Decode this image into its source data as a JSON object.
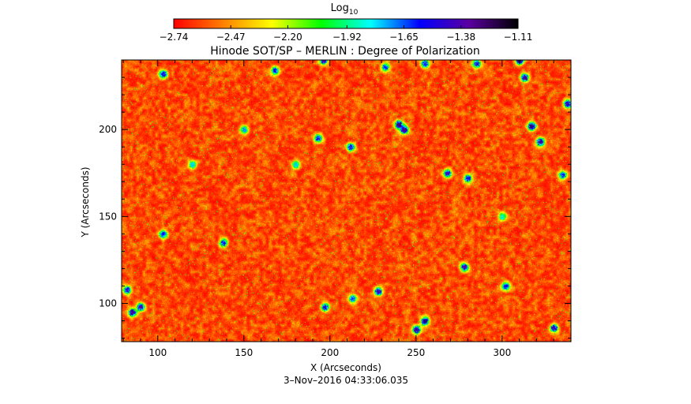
{
  "chart_data": {
    "type": "heatmap",
    "title": "Hinode SOT/SP – MERLIN : Degree of Polarization",
    "xlabel": "X (Arcseconds)",
    "ylabel": "Y (Arcseconds)",
    "footer": "3–Nov–2016 04:33:06.035",
    "xlim": [
      79,
      340
    ],
    "ylim": [
      78,
      240
    ],
    "x_ticks": [
      100,
      150,
      200,
      250,
      300
    ],
    "y_ticks": [
      100,
      150,
      200
    ],
    "x_tick_labels": [
      "100",
      "150",
      "200",
      "250",
      "300"
    ],
    "y_tick_labels": [
      "100",
      "150",
      "200"
    ],
    "colorbar": {
      "label_base": "Log",
      "label_sub": "10",
      "range": [
        -2.74,
        -1.11
      ],
      "ticks": [
        -2.74,
        -2.47,
        -2.2,
        -1.92,
        -1.65,
        -1.38,
        -1.11
      ],
      "tick_labels": [
        "−2.74",
        "−2.47",
        "−2.20",
        "−1.92",
        "−1.65",
        "−1.38",
        "−1.11"
      ],
      "colors": [
        "#ff0000",
        "#ff7f00",
        "#ffff00",
        "#00ff00",
        "#00ffff",
        "#0000ff",
        "#5a00a0",
        "#000000"
      ]
    },
    "grid": false,
    "legend": "none",
    "field_typical_range": [
      -2.74,
      -2.35
    ],
    "patches": [
      {
        "x": 103,
        "y": 232,
        "value": -1.45
      },
      {
        "x": 168,
        "y": 234,
        "value": -1.55
      },
      {
        "x": 196,
        "y": 240,
        "value": -1.35
      },
      {
        "x": 232,
        "y": 236,
        "value": -1.6
      },
      {
        "x": 255,
        "y": 238,
        "value": -1.5
      },
      {
        "x": 285,
        "y": 238,
        "value": -1.45
      },
      {
        "x": 310,
        "y": 240,
        "value": -1.2
      },
      {
        "x": 313,
        "y": 230,
        "value": -1.3
      },
      {
        "x": 240,
        "y": 203,
        "value": -1.25
      },
      {
        "x": 243,
        "y": 200,
        "value": -1.3
      },
      {
        "x": 317,
        "y": 202,
        "value": -1.25
      },
      {
        "x": 322,
        "y": 193,
        "value": -1.3
      },
      {
        "x": 193,
        "y": 195,
        "value": -1.5
      },
      {
        "x": 212,
        "y": 190,
        "value": -1.45
      },
      {
        "x": 268,
        "y": 175,
        "value": -1.4
      },
      {
        "x": 280,
        "y": 172,
        "value": -1.5
      },
      {
        "x": 335,
        "y": 174,
        "value": -1.55
      },
      {
        "x": 338,
        "y": 215,
        "value": -1.3
      },
      {
        "x": 82,
        "y": 108,
        "value": -1.45
      },
      {
        "x": 90,
        "y": 98,
        "value": -1.35
      },
      {
        "x": 85,
        "y": 95,
        "value": -1.3
      },
      {
        "x": 103,
        "y": 140,
        "value": -1.55
      },
      {
        "x": 138,
        "y": 135,
        "value": -1.5
      },
      {
        "x": 197,
        "y": 98,
        "value": -1.45
      },
      {
        "x": 213,
        "y": 103,
        "value": -1.6
      },
      {
        "x": 228,
        "y": 107,
        "value": -1.4
      },
      {
        "x": 255,
        "y": 90,
        "value": -1.2
      },
      {
        "x": 250,
        "y": 85,
        "value": -1.3
      },
      {
        "x": 278,
        "y": 121,
        "value": -1.35
      },
      {
        "x": 302,
        "y": 110,
        "value": -1.5
      },
      {
        "x": 330,
        "y": 86,
        "value": -1.4
      },
      {
        "x": 150,
        "y": 200,
        "value": -1.7
      },
      {
        "x": 180,
        "y": 180,
        "value": -1.75
      },
      {
        "x": 300,
        "y": 150,
        "value": -1.8
      },
      {
        "x": 120,
        "y": 180,
        "value": -1.75
      }
    ]
  }
}
